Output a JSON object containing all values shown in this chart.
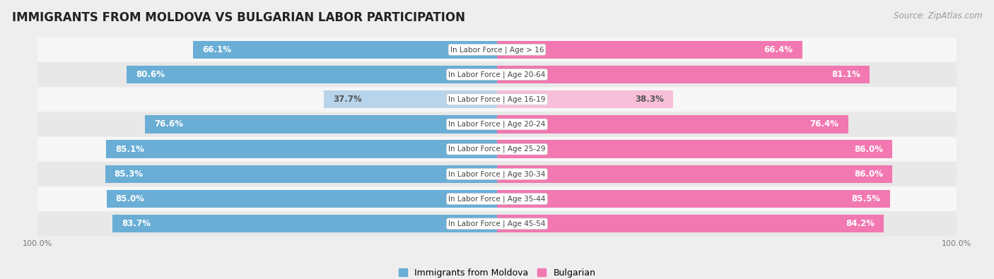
{
  "title": "IMMIGRANTS FROM MOLDOVA VS BULGARIAN LABOR PARTICIPATION",
  "source": "Source: ZipAtlas.com",
  "categories": [
    "In Labor Force | Age > 16",
    "In Labor Force | Age 20-64",
    "In Labor Force | Age 16-19",
    "In Labor Force | Age 20-24",
    "In Labor Force | Age 25-29",
    "In Labor Force | Age 30-34",
    "In Labor Force | Age 35-44",
    "In Labor Force | Age 45-54"
  ],
  "moldova_values": [
    66.1,
    80.6,
    37.7,
    76.6,
    85.1,
    85.3,
    85.0,
    83.7
  ],
  "bulgarian_values": [
    66.4,
    81.1,
    38.3,
    76.4,
    86.0,
    86.0,
    85.5,
    84.2
  ],
  "moldova_color": "#6aaed6",
  "moldova_color_light": "#b8d4ea",
  "bulgarian_color": "#f178b0",
  "bulgarian_color_light": "#f8c0d8",
  "bg_color": "#eeeeee",
  "row_bg_light": "#f7f7f7",
  "row_bg_dark": "#e8e8e8",
  "title_fontsize": 12,
  "source_fontsize": 8.5,
  "bar_label_fontsize": 8.5,
  "category_fontsize": 7.5,
  "legend_fontsize": 9,
  "axis_label_fontsize": 8
}
